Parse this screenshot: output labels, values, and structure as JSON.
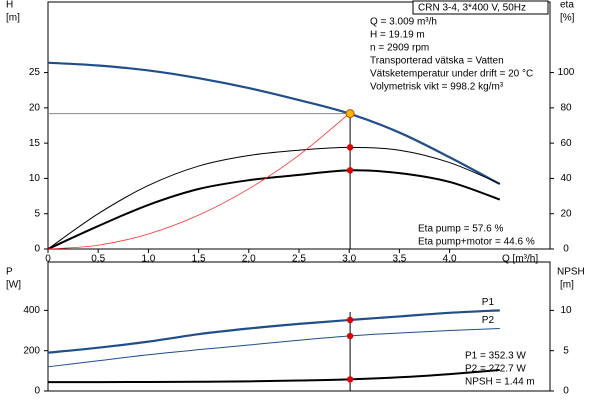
{
  "chart_data": [
    {
      "type": "line",
      "header": "CRN 3-4, 3*400 V, 50Hz",
      "y_label": [
        "H",
        "[m]"
      ],
      "y2_label": [
        "eta",
        "[%]"
      ],
      "x_label": "Q [m³/h]",
      "info": [
        "Q = 3.009 m³/h",
        "H = 19.19 m",
        "n = 2909 rpm",
        "Transporterad vätska = Vatten",
        "Vätsketemperatur under drift = 20 °C",
        "Volymetrisk vikt = 998.2 kg/m³"
      ],
      "eta_text": [
        "Eta pump = 57.6 %",
        "Eta pump+motor = 44.6 %"
      ],
      "xlim": [
        0,
        5
      ],
      "ylim": [
        0,
        35
      ],
      "y2lim": [
        0,
        140
      ],
      "xticks": [
        0,
        {
          "value": 0.5,
          "label": "0,5"
        },
        {
          "value": 1,
          "label": "1,0"
        },
        {
          "value": 1.5,
          "label": "1,5"
        },
        {
          "value": 2,
          "label": "2,0"
        },
        {
          "value": 2.5,
          "label": "2,5"
        },
        {
          "value": 3,
          "label": "3,0"
        },
        {
          "value": 3.5,
          "label": "3,5"
        },
        {
          "value": 4,
          "label": "4,0"
        }
      ],
      "yticks": [
        0,
        5,
        10,
        15,
        20,
        25
      ],
      "y2ticks": [
        0,
        20,
        40,
        60,
        80,
        100
      ],
      "x": [
        0,
        0.5,
        1,
        1.5,
        2,
        2.5,
        3,
        3.5,
        4,
        4.5
      ],
      "series": [
        {
          "color": "#1f4e8c",
          "width": 2.2,
          "values": [
            26.4,
            26.0,
            25.3,
            24.2,
            22.8,
            21.1,
            19.19,
            16.5,
            13.0,
            9.2
          ]
        },
        {
          "color": "#000000",
          "width": 1,
          "axis": "y2",
          "values": [
            0,
            20,
            36,
            47,
            53,
            56,
            57.6,
            56,
            49,
            37
          ]
        },
        {
          "color": "#000000",
          "width": 2,
          "axis": "y2",
          "values": [
            0,
            13,
            25,
            34,
            39,
            42,
            44.6,
            43,
            38,
            28
          ]
        },
        {
          "color": "#ff3030",
          "width": 0.8,
          "values": [
            0,
            0.53,
            2.13,
            4.8,
            8.53,
            13.3,
            19.19,
            null,
            null,
            null
          ]
        }
      ],
      "markers": [
        {
          "x": 3.009,
          "y": 19.19,
          "color": "#f5b700"
        },
        {
          "x": 3.009,
          "y": 57.6,
          "axis": "y2",
          "color": "#e00000"
        },
        {
          "x": 3.009,
          "y": 44.6,
          "axis": "y2",
          "color": "#e00000"
        }
      ]
    },
    {
      "type": "line",
      "y_label": [
        "P",
        "[W]"
      ],
      "y2_label": [
        "NPSH",
        "[m]"
      ],
      "info": [
        "P1 = 352.3 W",
        "P2 = 272.7 W",
        "NPSH = 1.44 m"
      ],
      "xlim": [
        0,
        5
      ],
      "ylim": [
        0,
        640
      ],
      "y2lim": [
        0,
        16
      ],
      "yticks": [
        0,
        200,
        400
      ],
      "y2ticks": [
        0,
        5,
        10
      ],
      "x": [
        0,
        0.5,
        1,
        1.5,
        2,
        2.5,
        3,
        3.5,
        4,
        4.5
      ],
      "series": [
        {
          "name": "P1",
          "color": "#1f4e8c",
          "width": 2.2,
          "values": [
            190,
            215,
            245,
            282,
            310,
            333,
            352.3,
            370,
            388,
            400
          ]
        },
        {
          "name": "P2",
          "color": "#1f4e8c",
          "width": 1,
          "values": [
            120,
            150,
            180,
            205,
            228,
            252,
            272.7,
            288,
            300,
            310
          ]
        },
        {
          "color": "#000000",
          "width": 2,
          "axis": "y2",
          "values": [
            1.1,
            1.1,
            1.12,
            1.15,
            1.2,
            1.3,
            1.44,
            1.7,
            2.1,
            2.6
          ]
        }
      ],
      "markers": [
        {
          "x": 3.009,
          "y": 352.3,
          "color": "#e00000"
        },
        {
          "x": 3.009,
          "y": 272.7,
          "color": "#e00000"
        },
        {
          "x": 3.009,
          "y": 1.44,
          "axis": "y2",
          "color": "#e00000"
        }
      ]
    }
  ]
}
